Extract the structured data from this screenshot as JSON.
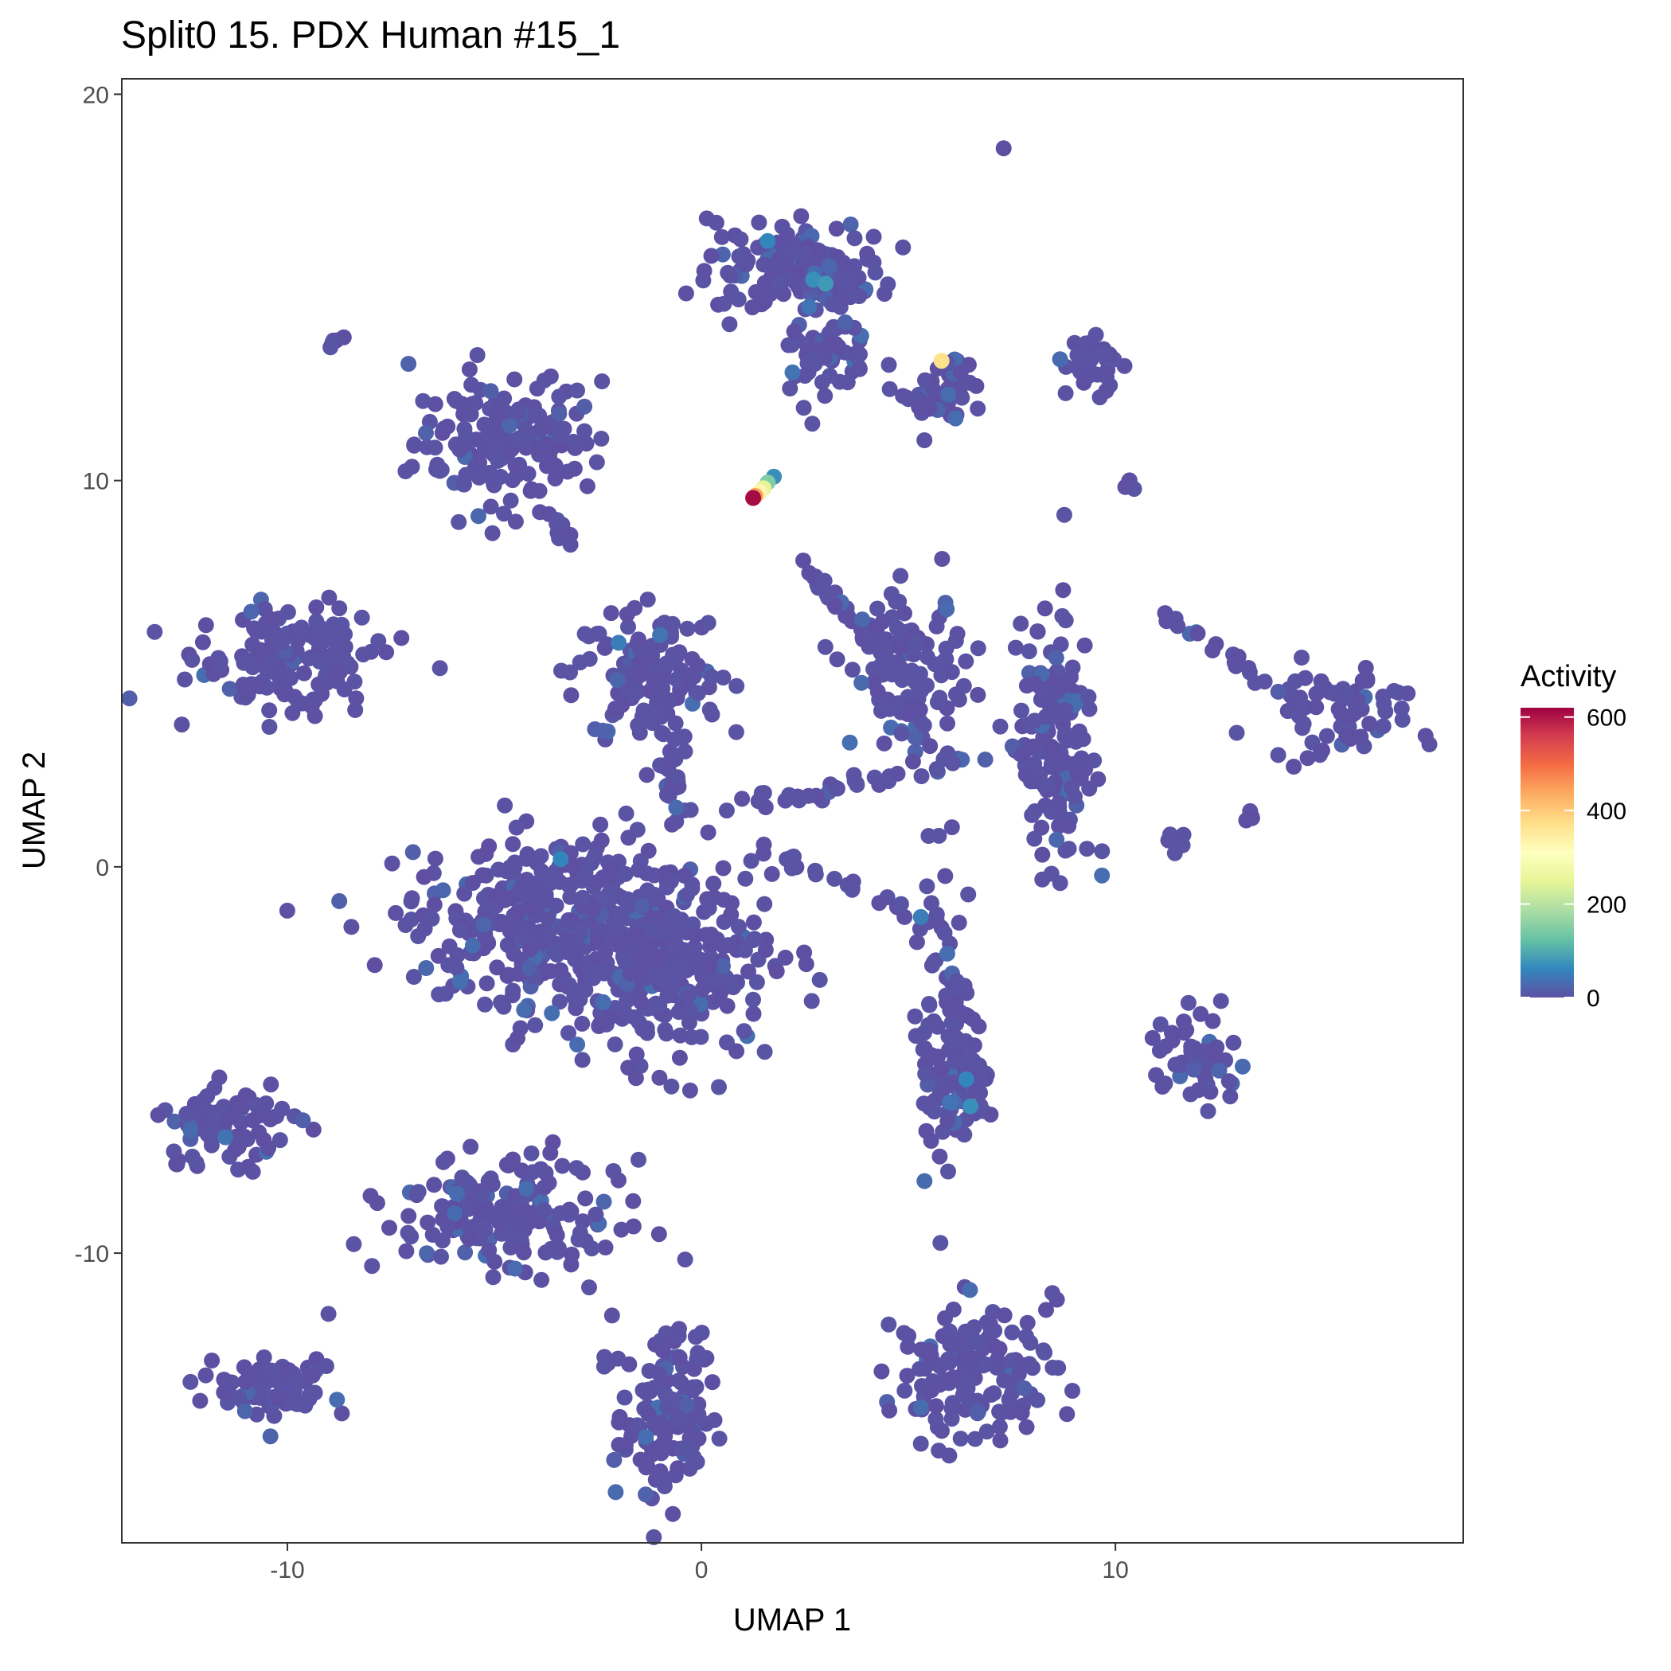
{
  "chart_data": {
    "type": "scatter",
    "title": "Split0 15. PDX Human #15_1",
    "xlabel": "UMAP 1",
    "ylabel": "UMAP 2",
    "xlim": [
      -14,
      18.4
    ],
    "ylim": [
      -17.5,
      20.4
    ],
    "x_ticks": [
      -10,
      0,
      10
    ],
    "x_tick_labels": [
      "-10",
      "0",
      "10"
    ],
    "y_ticks": [
      -10,
      0,
      10,
      20
    ],
    "y_tick_labels": [
      "-10",
      "0",
      "10",
      "20"
    ],
    "grid": false,
    "legend": {
      "title": "Activity",
      "position": "right",
      "colormap": "Spectral (reversed)",
      "range": [
        0,
        620
      ],
      "ticks": [
        0,
        200,
        400,
        600
      ],
      "tick_labels": [
        "0",
        "200",
        "400",
        "600"
      ],
      "colors": [
        "#5E4FA2",
        "#3288BD",
        "#66C2A5",
        "#ABDDA4",
        "#E6F598",
        "#FFFFBF",
        "#FEE08B",
        "#FDAE61",
        "#F46D43",
        "#D53E4F",
        "#9E0142"
      ]
    },
    "base_color": "#5E4FA2",
    "clusters": [
      {
        "cx": -9.2,
        "cy": 13.3,
        "sx": 0.2,
        "sy": 0.2,
        "n": 6,
        "shape": "line",
        "x2": -8.6,
        "y2": 13.8
      },
      {
        "cx": -4.7,
        "cy": 11.0,
        "sx": 1.5,
        "sy": 1.2,
        "n": 160,
        "shape": "blob"
      },
      {
        "cx": -10.0,
        "cy": 5.4,
        "sx": 1.5,
        "sy": 0.9,
        "n": 150,
        "shape": "blob"
      },
      {
        "cx": -1.3,
        "cy": 5.0,
        "sx": 1.2,
        "sy": 1.2,
        "n": 140,
        "shape": "blob"
      },
      {
        "cx": -3.8,
        "cy": -1.3,
        "sx": 2.2,
        "sy": 1.4,
        "n": 320,
        "shape": "blob"
      },
      {
        "cx": -1.0,
        "cy": -2.6,
        "sx": 1.8,
        "sy": 1.6,
        "n": 300,
        "shape": "blob"
      },
      {
        "cx": 2.5,
        "cy": 15.5,
        "sx": 1.5,
        "sy": 0.8,
        "n": 140,
        "shape": "blob"
      },
      {
        "cx": 3.0,
        "cy": 13.5,
        "sx": 0.7,
        "sy": 1.0,
        "n": 60,
        "shape": "blob"
      },
      {
        "cx": 5.8,
        "cy": 12.3,
        "sx": 0.7,
        "sy": 0.6,
        "n": 60,
        "shape": "blob"
      },
      {
        "cx": 9.4,
        "cy": 13.0,
        "sx": 0.4,
        "sy": 0.6,
        "n": 30,
        "shape": "blob"
      },
      {
        "cx": 5.0,
        "cy": 5.0,
        "sx": 0.9,
        "sy": 1.2,
        "n": 120,
        "shape": "blob"
      },
      {
        "cx": 8.6,
        "cy": 3.2,
        "sx": 0.6,
        "sy": 2.2,
        "n": 150,
        "shape": "blob"
      },
      {
        "cx": 5.9,
        "cy": -4.0,
        "sx": 0.5,
        "sy": 2.6,
        "n": 90,
        "shape": "blob"
      },
      {
        "cx": 6.2,
        "cy": -5.6,
        "sx": 0.6,
        "sy": 0.7,
        "n": 50,
        "shape": "blob"
      },
      {
        "cx": 15.5,
        "cy": 4.0,
        "sx": 1.2,
        "sy": 0.8,
        "n": 70,
        "shape": "blob"
      },
      {
        "cx": 12.0,
        "cy": -4.9,
        "sx": 0.9,
        "sy": 0.7,
        "n": 50,
        "shape": "blob"
      },
      {
        "cx": -11.5,
        "cy": -6.8,
        "sx": 1.1,
        "sy": 0.8,
        "n": 80,
        "shape": "blob"
      },
      {
        "cx": -4.7,
        "cy": -9.0,
        "sx": 1.8,
        "sy": 0.9,
        "n": 180,
        "shape": "blob"
      },
      {
        "cx": -10.3,
        "cy": -13.5,
        "sx": 0.9,
        "sy": 0.6,
        "n": 80,
        "shape": "blob"
      },
      {
        "cx": -0.9,
        "cy": -14.2,
        "sx": 0.8,
        "sy": 1.5,
        "n": 130,
        "shape": "blob"
      },
      {
        "cx": 6.6,
        "cy": -13.0,
        "sx": 1.3,
        "sy": 1.1,
        "n": 150,
        "shape": "blob"
      },
      {
        "cx": 0.5,
        "cy": 1.5,
        "sx": 0.3,
        "sy": 0.3,
        "n": 40,
        "shape": "line",
        "x2": 8.5,
        "y2": 3.2
      },
      {
        "cx": 2.5,
        "cy": 7.7,
        "sx": 0.3,
        "sy": 0.3,
        "n": 30,
        "shape": "line",
        "x2": 4.5,
        "y2": 5.5
      },
      {
        "cx": 1.5,
        "cy": 0.5,
        "sx": 0.2,
        "sy": 0.2,
        "n": 20,
        "shape": "line",
        "x2": 5.0,
        "y2": -1.2
      },
      {
        "cx": 11.2,
        "cy": 6.5,
        "sx": 0.2,
        "sy": 0.2,
        "n": 20,
        "shape": "line",
        "x2": 14.2,
        "y2": 4.5
      },
      {
        "cx": 11.6,
        "cy": 0.6,
        "sx": 0.2,
        "sy": 0.2,
        "n": 8,
        "shape": "blob"
      },
      {
        "cx": 13.2,
        "cy": 1.3,
        "sx": 0.1,
        "sy": 0.1,
        "n": 4,
        "shape": "blob"
      },
      {
        "cx": 10.4,
        "cy": 9.9,
        "sx": 0.1,
        "sy": 0.1,
        "n": 4,
        "shape": "blob"
      },
      {
        "cx": -1.0,
        "cy": 3.3,
        "sx": 0.3,
        "sy": 1.0,
        "n": 20,
        "shape": "line",
        "x2": -0.5,
        "y2": 1.0
      },
      {
        "cx": -3.5,
        "cy": 9.0,
        "sx": 0.2,
        "sy": 0.2,
        "n": 10,
        "shape": "line",
        "x2": -3.2,
        "y2": 8.2
      }
    ],
    "highlight_points": [
      {
        "x": 7.3,
        "y": 18.6,
        "value": 0
      },
      {
        "x": 1.6,
        "y": 16.2,
        "value": 60
      },
      {
        "x": 2.7,
        "y": 15.2,
        "value": 70
      },
      {
        "x": 3.0,
        "y": 15.1,
        "value": 80
      },
      {
        "x": 2.6,
        "y": 14.5,
        "value": 40
      },
      {
        "x": 2.2,
        "y": 12.8,
        "value": 40
      },
      {
        "x": 5.8,
        "y": 13.1,
        "value": 370
      },
      {
        "x": 1.75,
        "y": 10.1,
        "value": 70
      },
      {
        "x": 1.6,
        "y": 9.95,
        "value": 150
      },
      {
        "x": 1.5,
        "y": 9.8,
        "value": 250
      },
      {
        "x": 1.4,
        "y": 9.7,
        "value": 330
      },
      {
        "x": 1.3,
        "y": 9.6,
        "value": 450
      },
      {
        "x": 1.25,
        "y": 9.55,
        "value": 610
      },
      {
        "x": -3.4,
        "y": 0.2,
        "value": 60
      },
      {
        "x": -2.0,
        "y": 5.8,
        "value": 50
      },
      {
        "x": -1.0,
        "y": 6.0,
        "value": 40
      },
      {
        "x": 5.3,
        "y": -1.3,
        "value": 50
      },
      {
        "x": 6.4,
        "y": -5.5,
        "value": 60
      },
      {
        "x": 6.5,
        "y": -6.2,
        "value": 70
      },
      {
        "x": 6.0,
        "y": -6.1,
        "value": 40
      },
      {
        "x": -11.5,
        "y": -7.0,
        "value": 40
      },
      {
        "x": -4.5,
        "y": -10.4,
        "value": 30
      },
      {
        "x": -3.0,
        "y": -4.6,
        "value": 30
      }
    ]
  }
}
